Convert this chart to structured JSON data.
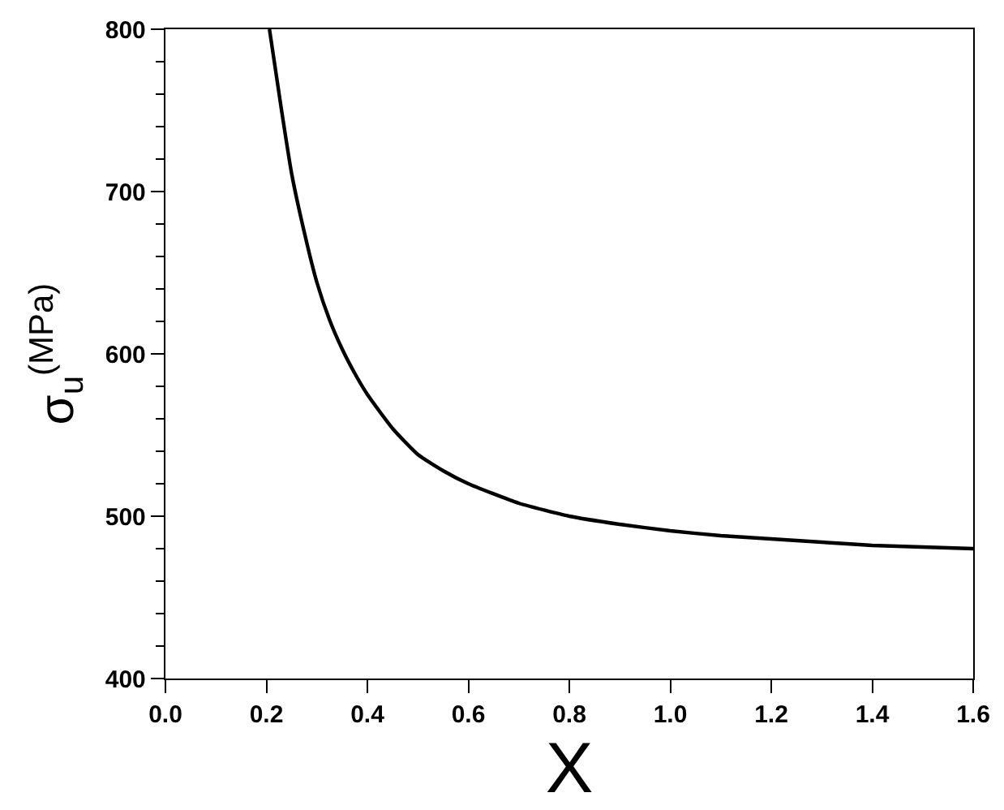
{
  "chart_data": {
    "type": "line",
    "xlabel": "X",
    "ylabel": "σ$_{u}$$^{(MPa)}$",
    "color": "#000000",
    "x": [
      0.206,
      0.23,
      0.25,
      0.275,
      0.3,
      0.325,
      0.35,
      0.375,
      0.4,
      0.45,
      0.5,
      0.55,
      0.6,
      0.7,
      0.8,
      0.9,
      1.0,
      1.1,
      1.2,
      1.3,
      1.4,
      1.5,
      1.6
    ],
    "values": [
      800,
      750,
      711,
      675,
      644,
      621,
      603,
      588,
      575,
      554,
      538,
      528,
      520,
      508,
      500,
      495,
      491,
      488,
      486,
      484,
      482,
      481,
      480
    ],
    "xlim": [
      0,
      1.6
    ],
    "ylim": [
      400,
      800
    ],
    "xticks": [
      {
        "value": 0,
        "label": "0.0"
      },
      0.2,
      0.4,
      0.6,
      0.8,
      {
        "value": 1,
        "label": "1.0"
      },
      1.2,
      1.4,
      1.6
    ],
    "yticks": [
      400,
      {
        "value": 420,
        "label": null
      },
      {
        "value": 440,
        "label": null
      },
      {
        "value": 460,
        "label": null
      },
      {
        "value": 480,
        "label": null
      },
      500,
      {
        "value": 520,
        "label": null
      },
      {
        "value": 540,
        "label": null
      },
      {
        "value": 560,
        "label": null
      },
      {
        "value": 580,
        "label": null
      },
      600,
      {
        "value": 620,
        "label": null
      },
      {
        "value": 640,
        "label": null
      },
      {
        "value": 660,
        "label": null
      },
      {
        "value": 680,
        "label": null
      },
      700,
      {
        "value": 720,
        "label": null
      },
      {
        "value": 740,
        "label": null
      },
      {
        "value": 760,
        "label": null
      },
      {
        "value": 780,
        "label": null
      },
      800
    ]
  }
}
